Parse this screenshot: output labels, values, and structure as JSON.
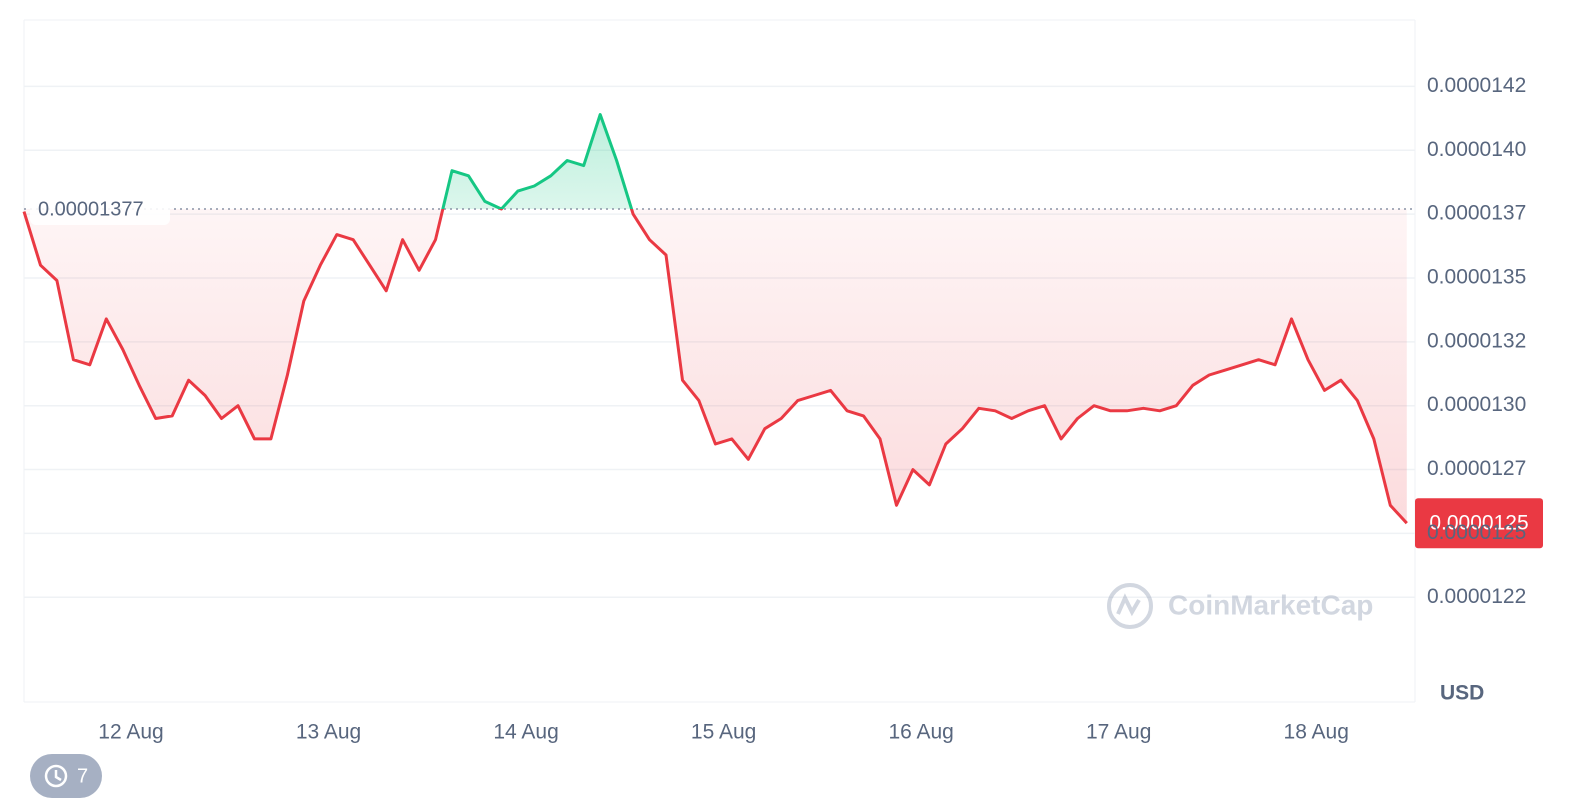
{
  "chart_data": {
    "type": "line",
    "x": [
      0,
      2,
      4,
      6,
      8,
      10,
      12,
      14,
      16,
      18,
      20,
      22,
      24,
      26,
      28,
      30,
      32,
      34,
      36,
      38,
      40,
      42,
      44,
      46,
      48,
      50,
      52,
      54,
      56,
      58,
      60,
      62,
      64,
      66,
      68,
      70,
      72,
      74,
      76,
      78,
      80,
      82,
      84,
      86,
      88,
      90,
      92,
      94,
      96,
      98,
      100,
      102,
      104,
      106,
      108,
      110,
      112,
      114,
      116,
      118,
      120,
      122,
      124,
      126,
      128,
      130,
      132,
      134,
      136,
      138,
      140,
      142,
      144,
      146,
      148,
      150,
      152,
      154,
      156,
      158,
      160,
      162,
      164,
      166,
      168
    ],
    "values": [
      1.376e-05,
      1.355e-05,
      1.349e-05,
      1.318e-05,
      1.316e-05,
      1.334e-05,
      1.322e-05,
      1.308e-05,
      1.295e-05,
      1.296e-05,
      1.31e-05,
      1.304e-05,
      1.295e-05,
      1.3e-05,
      1.287e-05,
      1.287e-05,
      1.312e-05,
      1.341e-05,
      1.355e-05,
      1.367e-05,
      1.365e-05,
      1.355e-05,
      1.345e-05,
      1.365e-05,
      1.353e-05,
      1.365e-05,
      1.392e-05,
      1.39e-05,
      1.38e-05,
      1.377e-05,
      1.384e-05,
      1.386e-05,
      1.39e-05,
      1.396e-05,
      1.394e-05,
      1.414e-05,
      1.396e-05,
      1.375e-05,
      1.365e-05,
      1.359e-05,
      1.31e-05,
      1.302e-05,
      1.285e-05,
      1.287e-05,
      1.279e-05,
      1.291e-05,
      1.295e-05,
      1.302e-05,
      1.304e-05,
      1.306e-05,
      1.298e-05,
      1.296e-05,
      1.287e-05,
      1.261e-05,
      1.275e-05,
      1.269e-05,
      1.285e-05,
      1.291e-05,
      1.299e-05,
      1.298e-05,
      1.295e-05,
      1.298e-05,
      1.3e-05,
      1.287e-05,
      1.295e-05,
      1.3e-05,
      1.298e-05,
      1.298e-05,
      1.299e-05,
      1.298e-05,
      1.3e-05,
      1.308e-05,
      1.312e-05,
      1.314e-05,
      1.316e-05,
      1.318e-05,
      1.316e-05,
      1.334e-05,
      1.318e-05,
      1.306e-05,
      1.31e-05,
      1.302e-05,
      1.287e-05,
      1.261e-05,
      1.254e-05
    ],
    "color_up": "#16c784",
    "color_down": "#ea3943",
    "baseline": 1.377e-05,
    "price_tag": {
      "value": 1.254e-05,
      "label": "0.0000125"
    },
    "xlim": [
      0,
      169
    ],
    "xticks": [
      {
        "value": 13,
        "label": "12 Aug"
      },
      {
        "value": 37,
        "label": "13 Aug"
      },
      {
        "value": 61,
        "label": "14 Aug"
      },
      {
        "value": 85,
        "label": "15 Aug"
      },
      {
        "value": 109,
        "label": "16 Aug"
      },
      {
        "value": 133,
        "label": "17 Aug"
      },
      {
        "value": 157,
        "label": "18 Aug"
      }
    ],
    "ylim": [
      1.184e-05,
      1.451e-05
    ],
    "yticks": [
      {
        "value": 1.425e-05,
        "label": "0.0000142"
      },
      {
        "value": 1.4e-05,
        "label": "0.0000140"
      },
      {
        "value": 1.375e-05,
        "label": "0.0000137"
      },
      1.35e-05,
      {
        "value": 1.325e-05,
        "label": "0.0000132"
      },
      {
        "value": 1.3e-05,
        "label": "0.0000130"
      },
      {
        "value": 1.275e-05,
        "label": "0.0000127"
      },
      1.25e-05,
      {
        "value": 1.225e-05,
        "label": "0.0000122"
      }
    ],
    "grid": true,
    "currency": "USD",
    "watermark": "CoinMarketCap",
    "history_count": 7
  }
}
